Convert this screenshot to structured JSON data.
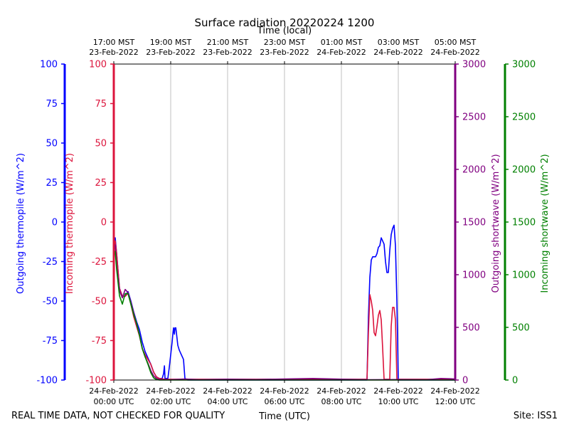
{
  "chart_data": {
    "type": "line",
    "title": "Surface radiation 20220224 1200",
    "top_axis_label": "Time (local)",
    "xlabel": "Time (UTC)",
    "footer_left": "REAL TIME DATA, NOT CHECKED FOR QUALITY",
    "footer_right": "Site: ISS1",
    "x_range_hours_utc": [
      0,
      12
    ],
    "bottom_ticks": [
      {
        "h": 0,
        "l1": "24-Feb-2022",
        "l2": "00:00 UTC"
      },
      {
        "h": 2,
        "l1": "24-Feb-2022",
        "l2": "02:00 UTC"
      },
      {
        "h": 4,
        "l1": "24-Feb-2022",
        "l2": "04:00 UTC"
      },
      {
        "h": 6,
        "l1": "24-Feb-2022",
        "l2": "06:00 UTC"
      },
      {
        "h": 8,
        "l1": "24-Feb-2022",
        "l2": "08:00 UTC"
      },
      {
        "h": 10,
        "l1": "24-Feb-2022",
        "l2": "10:00 UTC"
      },
      {
        "h": 12,
        "l1": "24-Feb-2022",
        "l2": "12:00 UTC"
      }
    ],
    "top_ticks": [
      {
        "h": 0,
        "l1": "17:00 MST",
        "l2": "23-Feb-2022"
      },
      {
        "h": 2,
        "l1": "19:00 MST",
        "l2": "23-Feb-2022"
      },
      {
        "h": 4,
        "l1": "21:00 MST",
        "l2": "23-Feb-2022"
      },
      {
        "h": 6,
        "l1": "23:00 MST",
        "l2": "23-Feb-2022"
      },
      {
        "h": 8,
        "l1": "01:00 MST",
        "l2": "24-Feb-2022"
      },
      {
        "h": 10,
        "l1": "03:00 MST",
        "l2": "24-Feb-2022"
      },
      {
        "h": 12,
        "l1": "05:00 MST",
        "l2": "24-Feb-2022"
      }
    ],
    "grid": "vertical",
    "axes": [
      {
        "id": "out_thermo",
        "label": "Outgoing thermopile (W/m^2)",
        "color": "#0000ff",
        "side": "left-outer",
        "ylim": [
          -100,
          100
        ],
        "ticks": [
          -100,
          -75,
          -50,
          -25,
          0,
          25,
          50,
          75,
          100
        ]
      },
      {
        "id": "in_thermo",
        "label": "Incoming thermopile (W/m^2)",
        "color": "#dc143c",
        "side": "left-inner",
        "ylim": [
          -100,
          100
        ],
        "ticks": [
          -100,
          -75,
          -50,
          -25,
          0,
          25,
          50,
          75,
          100
        ]
      },
      {
        "id": "out_sw",
        "label": "Outgoing shortwave (W/m^2)",
        "color": "#800080",
        "side": "right-inner",
        "ylim": [
          0,
          3000
        ],
        "ticks": [
          0,
          500,
          1000,
          1500,
          2000,
          2500,
          3000
        ]
      },
      {
        "id": "in_sw",
        "label": "Incoming shortwave (W/m^2)",
        "color": "#008000",
        "side": "right-outer",
        "ylim": [
          0,
          3000
        ],
        "ticks": [
          0,
          500,
          1000,
          1500,
          2000,
          2500,
          3000
        ]
      }
    ],
    "series": [
      {
        "name": "Outgoing thermopile",
        "axis": "out_thermo",
        "color": "#0000ff",
        "points": [
          [
            0,
            -15
          ],
          [
            0.05,
            -10
          ],
          [
            0.1,
            -20
          ],
          [
            0.2,
            -42
          ],
          [
            0.3,
            -47
          ],
          [
            0.4,
            -47
          ],
          [
            0.5,
            -44
          ],
          [
            0.6,
            -50
          ],
          [
            0.7,
            -57
          ],
          [
            0.8,
            -63
          ],
          [
            0.9,
            -68
          ],
          [
            1.0,
            -76
          ],
          [
            1.1,
            -82
          ],
          [
            1.2,
            -86
          ],
          [
            1.3,
            -90
          ],
          [
            1.4,
            -95
          ],
          [
            1.5,
            -98
          ],
          [
            1.6,
            -99
          ],
          [
            1.7,
            -99
          ],
          [
            1.75,
            -96
          ],
          [
            1.78,
            -91
          ],
          [
            1.8,
            -99
          ],
          [
            1.9,
            -99
          ],
          [
            1.95,
            -92
          ],
          [
            2.0,
            -84
          ],
          [
            2.05,
            -76
          ],
          [
            2.08,
            -70
          ],
          [
            2.1,
            -67
          ],
          [
            2.13,
            -71
          ],
          [
            2.15,
            -67
          ],
          [
            2.18,
            -67
          ],
          [
            2.2,
            -70
          ],
          [
            2.25,
            -78
          ],
          [
            2.3,
            -81
          ],
          [
            2.35,
            -83
          ],
          [
            2.4,
            -85
          ],
          [
            2.45,
            -87
          ],
          [
            2.5,
            -99
          ],
          [
            2.6,
            -100
          ],
          [
            8.9,
            -100
          ],
          [
            8.95,
            -60
          ],
          [
            9.0,
            -35
          ],
          [
            9.05,
            -24
          ],
          [
            9.1,
            -22
          ],
          [
            9.2,
            -22
          ],
          [
            9.25,
            -20
          ],
          [
            9.3,
            -16
          ],
          [
            9.35,
            -15
          ],
          [
            9.4,
            -10
          ],
          [
            9.5,
            -14
          ],
          [
            9.55,
            -25
          ],
          [
            9.6,
            -32
          ],
          [
            9.65,
            -32
          ],
          [
            9.7,
            -18
          ],
          [
            9.75,
            -8
          ],
          [
            9.8,
            -4
          ],
          [
            9.85,
            -2
          ],
          [
            9.9,
            -15
          ],
          [
            9.95,
            -50
          ],
          [
            10.0,
            -100
          ],
          [
            12,
            -100
          ]
        ]
      },
      {
        "name": "Incoming thermopile",
        "axis": "in_thermo",
        "color": "#dc143c",
        "points": [
          [
            0,
            -15
          ],
          [
            0.05,
            -12
          ],
          [
            0.1,
            -20
          ],
          [
            0.2,
            -42
          ],
          [
            0.3,
            -47
          ],
          [
            0.4,
            -47
          ],
          [
            0.5,
            -45
          ],
          [
            0.6,
            -52
          ],
          [
            0.7,
            -60
          ],
          [
            0.8,
            -66
          ],
          [
            0.9,
            -72
          ],
          [
            1.0,
            -80
          ],
          [
            1.1,
            -84
          ],
          [
            1.2,
            -87
          ],
          [
            1.3,
            -90
          ],
          [
            1.4,
            -95
          ],
          [
            1.5,
            -98
          ],
          [
            1.6,
            -99
          ],
          [
            1.8,
            -99.5
          ],
          [
            2.6,
            -99.5
          ],
          [
            8.9,
            -99.5
          ],
          [
            8.95,
            -70
          ],
          [
            9.0,
            -46
          ],
          [
            9.05,
            -50
          ],
          [
            9.1,
            -56
          ],
          [
            9.15,
            -70
          ],
          [
            9.2,
            -72
          ],
          [
            9.25,
            -66
          ],
          [
            9.3,
            -59
          ],
          [
            9.35,
            -56
          ],
          [
            9.4,
            -62
          ],
          [
            9.45,
            -80
          ],
          [
            9.5,
            -99.5
          ],
          [
            9.7,
            -99.5
          ],
          [
            9.75,
            -66
          ],
          [
            9.8,
            -54
          ],
          [
            9.85,
            -54
          ],
          [
            9.9,
            -62
          ],
          [
            9.95,
            -99.5
          ],
          [
            12,
            -99.5
          ]
        ]
      },
      {
        "name": "Outgoing shortwave",
        "axis": "out_sw",
        "color": "#800080",
        "points": [
          [
            0,
            1300
          ],
          [
            0.05,
            1280
          ],
          [
            0.1,
            1080
          ],
          [
            0.2,
            850
          ],
          [
            0.3,
            780
          ],
          [
            0.4,
            860
          ],
          [
            0.5,
            830
          ],
          [
            0.6,
            740
          ],
          [
            0.7,
            640
          ],
          [
            0.8,
            530
          ],
          [
            0.9,
            430
          ],
          [
            1.0,
            300
          ],
          [
            1.1,
            220
          ],
          [
            1.2,
            160
          ],
          [
            1.3,
            90
          ],
          [
            1.4,
            40
          ],
          [
            1.5,
            15
          ],
          [
            1.6,
            5
          ],
          [
            2.0,
            3
          ],
          [
            2.5,
            10
          ],
          [
            3.0,
            3
          ],
          [
            4.0,
            8
          ],
          [
            5.0,
            5
          ],
          [
            6.0,
            10
          ],
          [
            7.0,
            15
          ],
          [
            8.0,
            8
          ],
          [
            9.0,
            3
          ],
          [
            10.0,
            5
          ],
          [
            11.0,
            3
          ],
          [
            11.5,
            15
          ],
          [
            12,
            10
          ]
        ]
      },
      {
        "name": "Incoming shortwave",
        "axis": "in_sw",
        "color": "#008000",
        "points": [
          [
            0,
            1230
          ],
          [
            0.05,
            1220
          ],
          [
            0.1,
            1050
          ],
          [
            0.2,
            800
          ],
          [
            0.3,
            720
          ],
          [
            0.4,
            820
          ],
          [
            0.5,
            820
          ],
          [
            0.6,
            720
          ],
          [
            0.7,
            620
          ],
          [
            0.8,
            540
          ],
          [
            0.9,
            430
          ],
          [
            1.0,
            300
          ],
          [
            1.1,
            220
          ],
          [
            1.2,
            150
          ],
          [
            1.3,
            70
          ],
          [
            1.4,
            20
          ],
          [
            1.5,
            5
          ],
          [
            1.6,
            0
          ],
          [
            12,
            0
          ]
        ]
      }
    ]
  }
}
